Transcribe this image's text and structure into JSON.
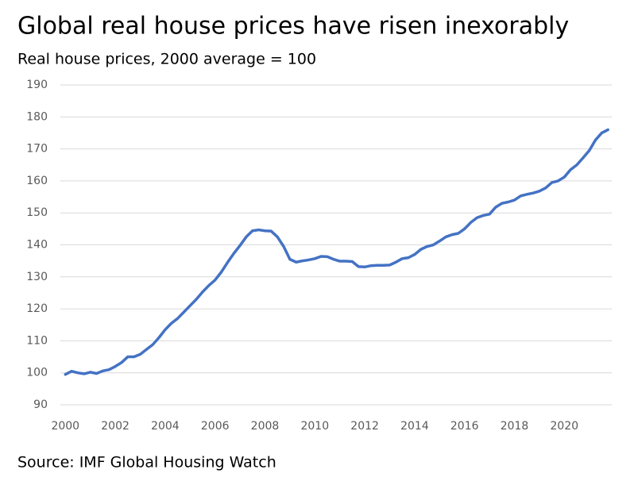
{
  "chart_data": {
    "type": "line",
    "title": "Global real house prices have risen inexorably",
    "subtitle": "Real house prices, 2000 average = 100",
    "source": "Source: IMF Global Housing Watch",
    "x": [
      2000,
      2000.25,
      2000.5,
      2000.75,
      2001,
      2001.25,
      2001.5,
      2001.75,
      2002,
      2002.25,
      2002.5,
      2002.75,
      2003,
      2003.25,
      2003.5,
      2003.75,
      2004,
      2004.25,
      2004.5,
      2004.75,
      2005,
      2005.25,
      2005.5,
      2005.75,
      2006,
      2006.25,
      2006.5,
      2006.75,
      2007,
      2007.25,
      2007.5,
      2007.75,
      2008,
      2008.25,
      2008.5,
      2008.75,
      2009,
      2009.25,
      2009.5,
      2009.75,
      2010,
      2010.25,
      2010.5,
      2010.75,
      2011,
      2011.25,
      2011.5,
      2011.75,
      2012,
      2012.25,
      2012.5,
      2012.75,
      2013,
      2013.25,
      2013.5,
      2013.75,
      2014,
      2014.25,
      2014.5,
      2014.75,
      2015,
      2015.25,
      2015.5,
      2015.75,
      2016,
      2016.25,
      2016.5,
      2016.75,
      2017,
      2017.25,
      2017.5,
      2017.75,
      2018,
      2018.25,
      2018.5,
      2018.75,
      2019,
      2019.25,
      2019.5,
      2019.75,
      2020,
      2020.25,
      2020.5,
      2020.75,
      2021,
      2021.25,
      2021.5,
      2021.75
    ],
    "series": [
      {
        "name": "Real house prices",
        "color": "#4472c4",
        "values": [
          99.5,
          100.5,
          100,
          99.7,
          100.2,
          99.8,
          100.6,
          101,
          102,
          103.2,
          105,
          105,
          105.8,
          107.3,
          108.8,
          111,
          113.5,
          115.5,
          117,
          119,
          121,
          123,
          125.3,
          127.3,
          129,
          131.5,
          134.5,
          137.3,
          139.8,
          142.5,
          144.4,
          144.7,
          144.4,
          144.3,
          142.5,
          139.5,
          135.5,
          134.6,
          135,
          135.3,
          135.7,
          136.4,
          136.3,
          135.5,
          134.9,
          134.9,
          134.8,
          133.2,
          133.1,
          133.5,
          133.6,
          133.6,
          133.7,
          134.6,
          135.7,
          136,
          137,
          138.6,
          139.5,
          140,
          141.2,
          142.5,
          143.2,
          143.6,
          145,
          147,
          148.5,
          149.2,
          149.6,
          151.8,
          153,
          153.4,
          154,
          155.3,
          155.8,
          156.2,
          156.8,
          157.8,
          159.5,
          160,
          161.2,
          163.5,
          165,
          167.2,
          169.5,
          172.8,
          175,
          176
        ]
      }
    ],
    "xlim": [
      1999.8,
      2021.9
    ],
    "xticks": [
      2000,
      2002,
      2004,
      2006,
      2008,
      2010,
      2012,
      2014,
      2016,
      2018,
      2020
    ],
    "ylim": [
      90,
      190
    ],
    "yticks": [
      90,
      100,
      110,
      120,
      130,
      140,
      150,
      160,
      170,
      180,
      190
    ],
    "grid": true
  }
}
